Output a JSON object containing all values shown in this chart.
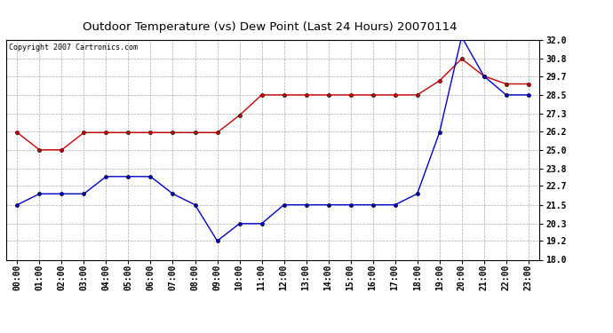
{
  "title": "Outdoor Temperature (vs) Dew Point (Last 24 Hours) 20070114",
  "copyright": "Copyright 2007 Cartronics.com",
  "hours": [
    "00:00",
    "01:00",
    "02:00",
    "03:00",
    "04:00",
    "05:00",
    "06:00",
    "07:00",
    "08:00",
    "09:00",
    "10:00",
    "11:00",
    "12:00",
    "13:00",
    "14:00",
    "15:00",
    "16:00",
    "17:00",
    "18:00",
    "19:00",
    "20:00",
    "21:00",
    "22:00",
    "23:00"
  ],
  "temp": [
    21.5,
    22.2,
    22.2,
    22.2,
    23.3,
    23.3,
    23.3,
    22.2,
    21.5,
    19.2,
    20.3,
    20.3,
    21.5,
    21.5,
    21.5,
    21.5,
    21.5,
    21.5,
    22.2,
    26.1,
    32.2,
    29.7,
    28.5,
    28.5
  ],
  "dew": [
    26.1,
    25.0,
    25.0,
    26.1,
    26.1,
    26.1,
    26.1,
    26.1,
    26.1,
    26.1,
    27.2,
    28.5,
    28.5,
    28.5,
    28.5,
    28.5,
    28.5,
    28.5,
    28.5,
    29.4,
    30.8,
    29.7,
    29.2,
    29.2
  ],
  "temp_color": "#0000cc",
  "dew_color": "#cc0000",
  "background_color": "#ffffff",
  "grid_color": "#aaaaaa",
  "ylim_min": 18.0,
  "ylim_max": 32.0,
  "yticks": [
    18.0,
    19.2,
    20.3,
    21.5,
    22.7,
    23.8,
    25.0,
    26.2,
    27.3,
    28.5,
    29.7,
    30.8,
    32.0
  ],
  "ytick_labels": [
    "18.0",
    "19.2",
    "20.3",
    "21.5",
    "22.7",
    "23.8",
    "25.0",
    "26.2",
    "27.3",
    "28.5",
    "29.7",
    "30.8",
    "32.0"
  ],
  "title_fontsize": 9.5,
  "copyright_fontsize": 6.0,
  "tick_fontsize": 7.0,
  "marker_style": "o",
  "marker_size": 3,
  "linewidth": 1.0
}
